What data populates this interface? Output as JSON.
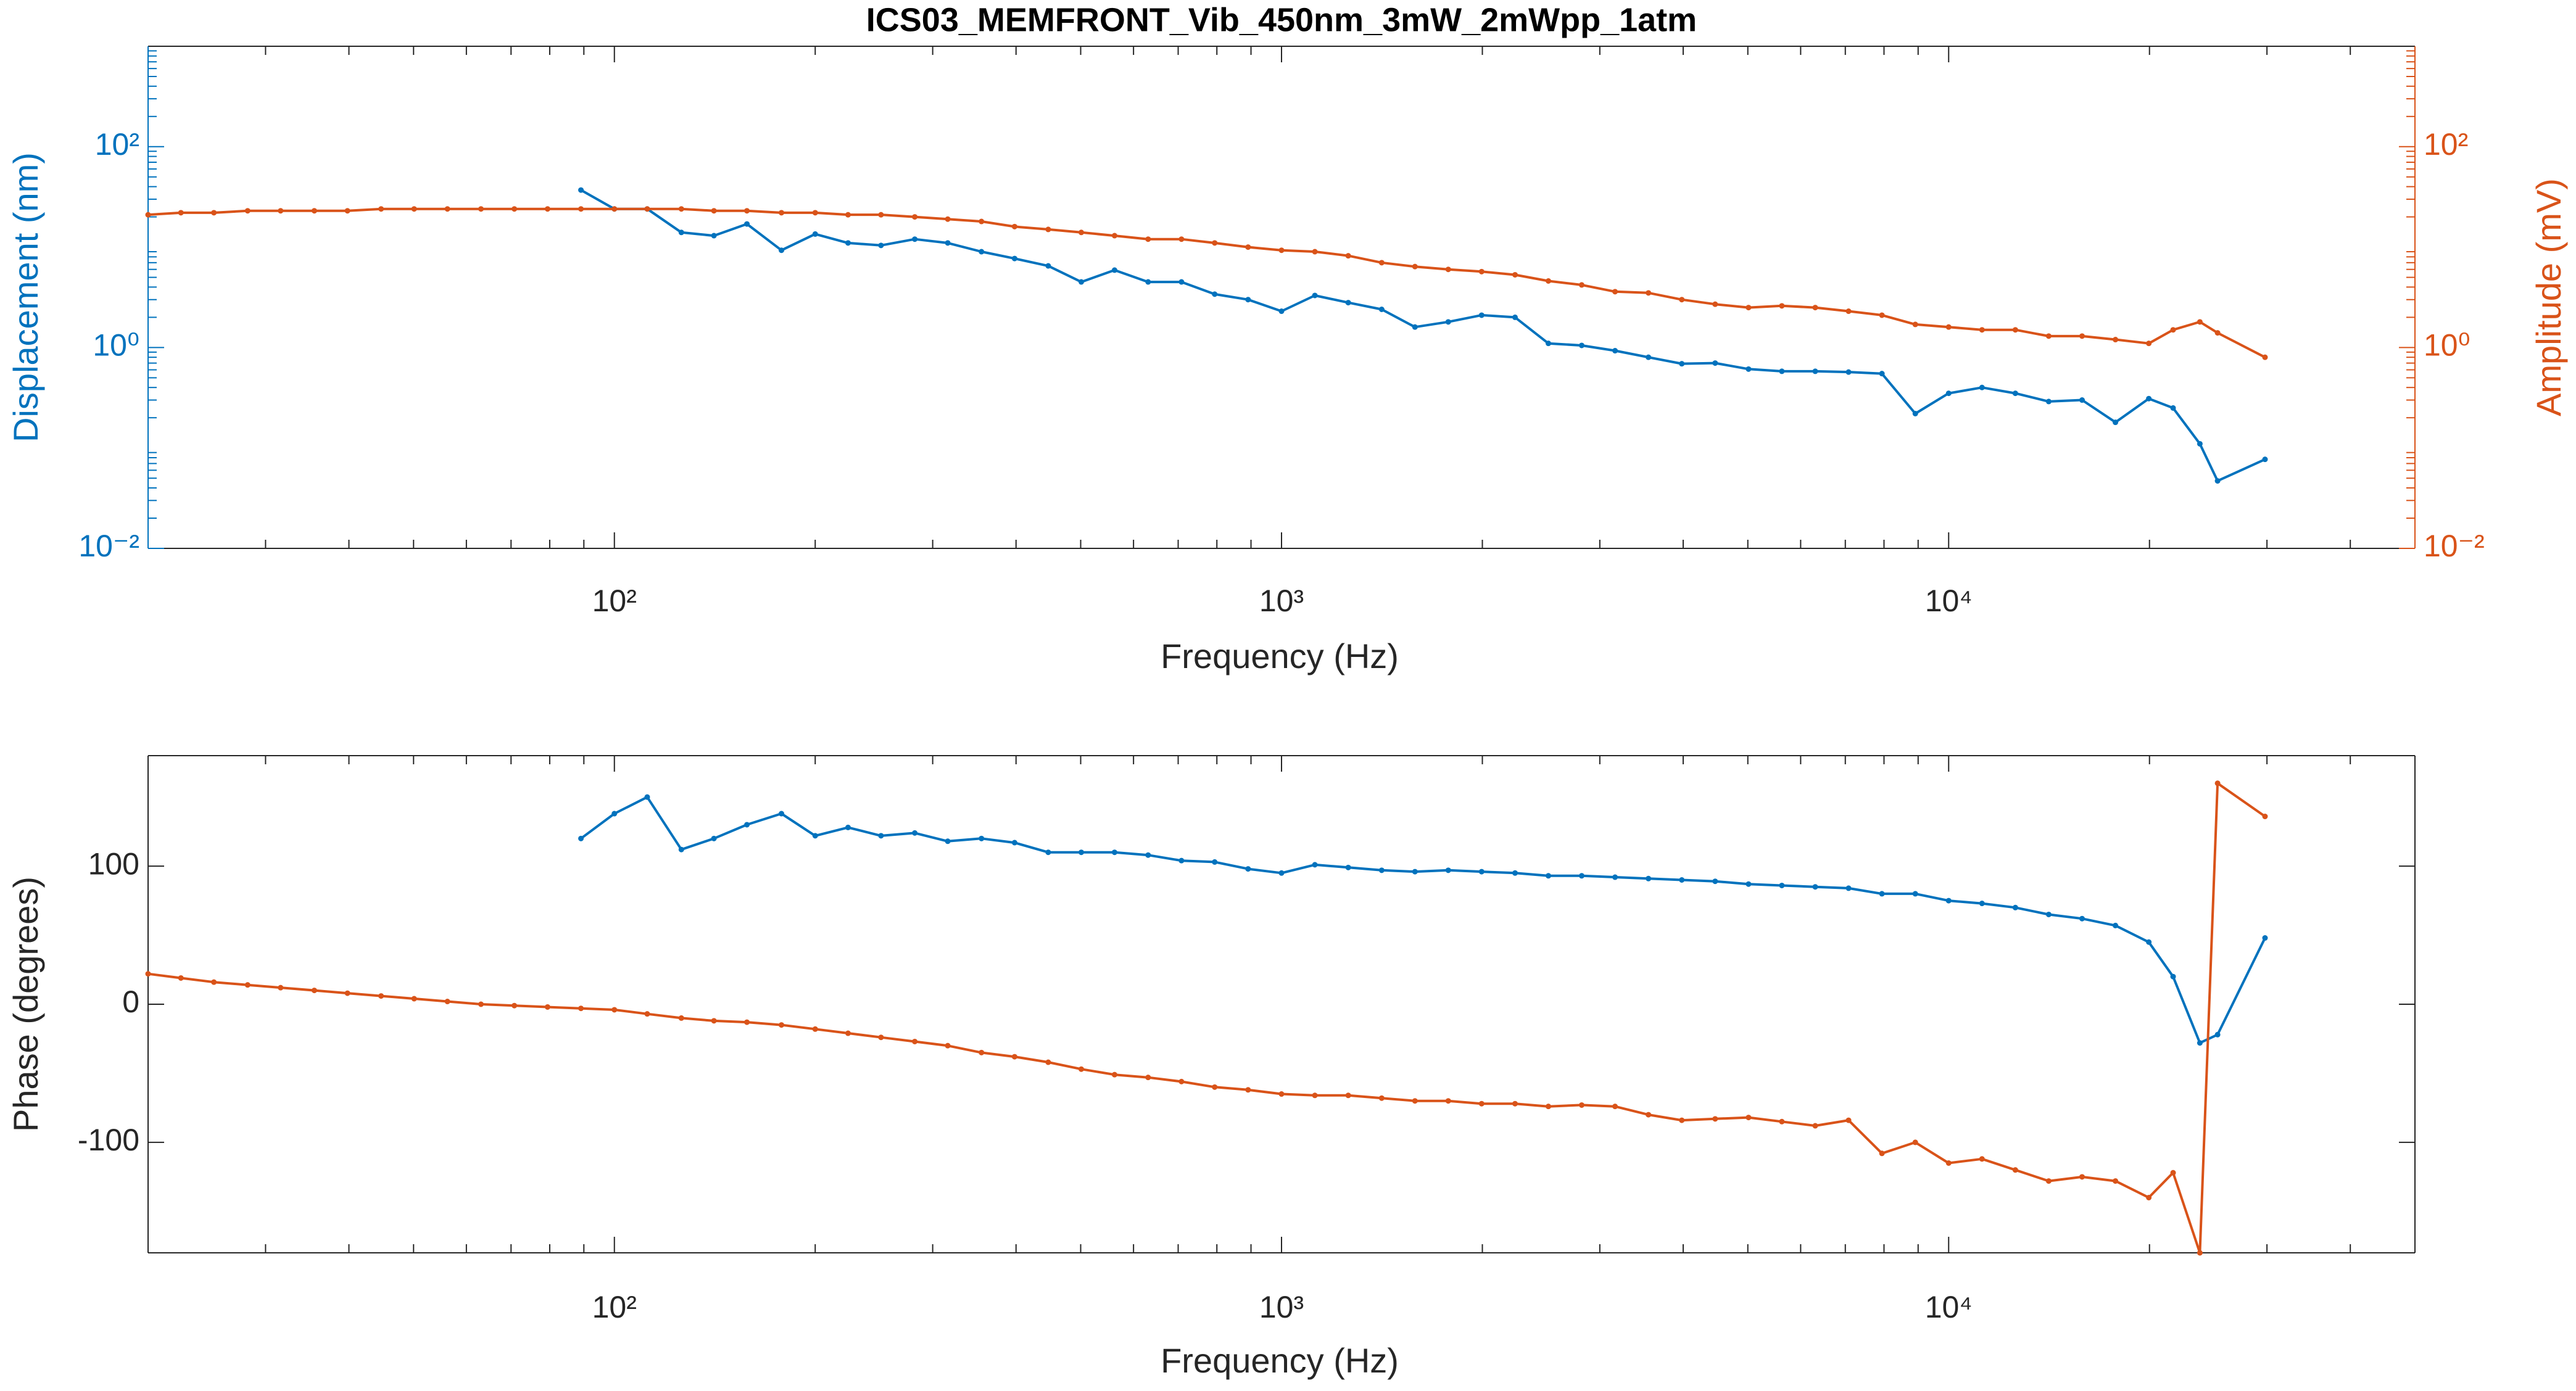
{
  "chart_data": [
    {
      "type": "line",
      "title": "ICS03_MEMFRONT_Vib_450nm_3mW_2mWpp_1atm",
      "xlabel": "Frequency (Hz)",
      "ylabel": "Displacement (nm)",
      "y2label": "Amplitude (mV)",
      "xscale": "log",
      "yscale": "log",
      "x": [
        20,
        22.4,
        25.1,
        28.2,
        31.6,
        35.5,
        39.8,
        44.7,
        50.1,
        56.2,
        63.1,
        70.8,
        79.4,
        89.1,
        100,
        112,
        126,
        141,
        158,
        178,
        200,
        224,
        251,
        282,
        316,
        355,
        398,
        447,
        501,
        562,
        631,
        708,
        794,
        891,
        1000,
        1122,
        1259,
        1413,
        1585,
        1778,
        1995,
        2239,
        2512,
        2818,
        3162,
        3548,
        3981,
        4467,
        5012,
        5623,
        6310,
        7079,
        7943,
        8913,
        10000,
        11220,
        12589,
        14125,
        15849,
        17783,
        19953,
        21700,
        23800,
        25300,
        29800
      ],
      "xlim": [
        20,
        50000
      ],
      "xticks": [
        {
          "value": 100,
          "label": "10²"
        },
        {
          "value": 1000,
          "label": "10³"
        },
        {
          "value": 10000,
          "label": "10⁴"
        }
      ],
      "ylim": [
        0.01,
        1000
      ],
      "yticks": [
        {
          "value": 0.01,
          "label": "10⁻²"
        },
        {
          "value": 1,
          "label": "10⁰"
        },
        {
          "value": 100,
          "label": "10²"
        }
      ],
      "y2lim": [
        0.01,
        1000
      ],
      "y2ticks": [
        {
          "value": 0.01,
          "label": "10⁻²"
        },
        {
          "value": 1,
          "label": "10⁰"
        },
        {
          "value": 100,
          "label": "10²"
        }
      ],
      "series": [
        {
          "color": "#0072BD",
          "axis": "y",
          "values": [
            null,
            null,
            null,
            null,
            null,
            null,
            null,
            null,
            null,
            null,
            null,
            null,
            null,
            37,
            24,
            24,
            14,
            13,
            17,
            9.3,
            13.5,
            11,
            10.4,
            12,
            11,
            9,
            7.7,
            6.5,
            4.5,
            5.9,
            4.5,
            4.5,
            3.4,
            3.0,
            2.3,
            3.3,
            2.8,
            2.4,
            1.6,
            1.8,
            2.1,
            2.0,
            1.1,
            1.05,
            0.93,
            0.8,
            0.69,
            0.7,
            0.61,
            0.58,
            0.58,
            0.57,
            0.55,
            0.22,
            0.35,
            0.4,
            0.35,
            0.29,
            0.3,
            0.18,
            0.31,
            0.25,
            0.11,
            0.047,
            0.077
          ]
        },
        {
          "color": "#D95319",
          "axis": "y2",
          "values": [
            21,
            22,
            22,
            23,
            23,
            23,
            23,
            24,
            24,
            24,
            24,
            24,
            24,
            24,
            24,
            24,
            24,
            23,
            23,
            22,
            22,
            21,
            21,
            20,
            19,
            18,
            16,
            15,
            14,
            13,
            12,
            12,
            11,
            10,
            9.3,
            9.0,
            8.2,
            7.0,
            6.4,
            6.0,
            5.7,
            5.3,
            4.6,
            4.2,
            3.6,
            3.5,
            3.0,
            2.7,
            2.5,
            2.6,
            2.5,
            2.3,
            2.1,
            1.7,
            1.6,
            1.5,
            1.5,
            1.3,
            1.3,
            1.2,
            1.1,
            1.5,
            1.8,
            1.4,
            0.8
          ]
        }
      ]
    },
    {
      "type": "line",
      "xlabel": "Frequency (Hz)",
      "ylabel": "Phase (degrees)",
      "xscale": "log",
      "yscale": "linear",
      "x": [
        20,
        22.4,
        25.1,
        28.2,
        31.6,
        35.5,
        39.8,
        44.7,
        50.1,
        56.2,
        63.1,
        70.8,
        79.4,
        89.1,
        100,
        112,
        126,
        141,
        158,
        178,
        200,
        224,
        251,
        282,
        316,
        355,
        398,
        447,
        501,
        562,
        631,
        708,
        794,
        891,
        1000,
        1122,
        1259,
        1413,
        1585,
        1778,
        1995,
        2239,
        2512,
        2818,
        3162,
        3548,
        3981,
        4467,
        5012,
        5623,
        6310,
        7079,
        7943,
        8913,
        10000,
        11220,
        12589,
        14125,
        15849,
        17783,
        19953,
        21700,
        23800,
        25300,
        29800
      ],
      "xlim": [
        20,
        50000
      ],
      "xticks": [
        {
          "value": 100,
          "label": "10²"
        },
        {
          "value": 1000,
          "label": "10³"
        },
        {
          "value": 10000,
          "label": "10⁴"
        }
      ],
      "ylim": [
        -180,
        180
      ],
      "yticks": [
        -100,
        0,
        100
      ],
      "series": [
        {
          "color": "#0072BD",
          "values": [
            null,
            null,
            null,
            null,
            null,
            null,
            null,
            null,
            null,
            null,
            null,
            null,
            null,
            120,
            138,
            150,
            112,
            120,
            130,
            138,
            122,
            128,
            122,
            124,
            118,
            120,
            117,
            110,
            110,
            110,
            108,
            104,
            103,
            98,
            95,
            101,
            99,
            97,
            96,
            97,
            96,
            95,
            93,
            93,
            92,
            91,
            90,
            89,
            87,
            86,
            85,
            84,
            80,
            80,
            75,
            73,
            70,
            65,
            62,
            57,
            45,
            20,
            -28,
            -22,
            48
          ]
        },
        {
          "color": "#D95319",
          "values": [
            22,
            19,
            16,
            14,
            12,
            10,
            8,
            6,
            4,
            2,
            0,
            -1,
            -2,
            -3,
            -4,
            -7,
            -10,
            -12,
            -13,
            -15,
            -18,
            -21,
            -24,
            -27,
            -30,
            -35,
            -38,
            -42,
            -47,
            -51,
            -53,
            -56,
            -60,
            -62,
            -65,
            -66,
            -66,
            -68,
            -70,
            -70,
            -72,
            -72,
            -74,
            -73,
            -74,
            -80,
            -84,
            -83,
            -82,
            -85,
            -88,
            -84,
            -108,
            -100,
            -115,
            -112,
            -120,
            -128,
            -125,
            -128,
            -140,
            -122,
            -180,
            160,
            136
          ]
        }
      ]
    }
  ]
}
